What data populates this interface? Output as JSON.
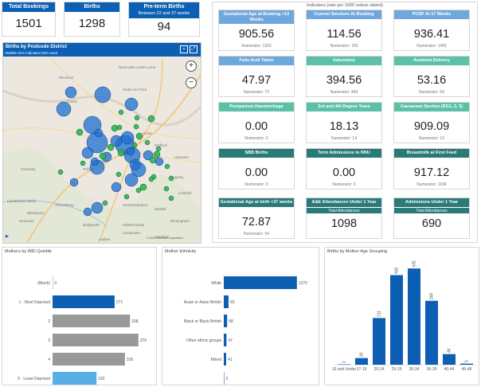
{
  "kpis": [
    {
      "label": "Total Bookings",
      "value": "1501"
    },
    {
      "label": "Births",
      "value": "1298"
    },
    {
      "label": "Pre-term Births",
      "sublabel": "Between 22 and 37 weeks",
      "value": "94"
    }
  ],
  "map": {
    "title": "Births by Postcode District",
    "subtitle": "Bubble Size indicates birth count",
    "zoom_in": "+",
    "zoom_out": "−",
    "place_labels": [
      "Winsford",
      "Crewe",
      "Stoke-on-Trent",
      "Newcastle-under-Lyme",
      "Stafford",
      "Rugeley",
      "Lichfield",
      "Telford",
      "Wellington",
      "Walsall",
      "Wolverhampton",
      "Newtown",
      "Shrewsbury",
      "Oswestry",
      "Welshpool",
      "Ludlow",
      "Leominster",
      "Hereford",
      "Llandrindod Wells",
      "Bridgnorth",
      "Kidderminster",
      "Birmingham",
      "Stone",
      "Uttoxeter"
    ],
    "attribution": "© 2024 Microsoft Corporation"
  },
  "indicators": {
    "title": "Indicators (rate per 1000 unless stated)",
    "items": [
      {
        "label": "Gestational Age at Booking <13 Weeks",
        "value": "905.56",
        "note": "Numerator: 1362",
        "color": "#6fa8dc"
      },
      {
        "label": "Current Smokers At Booking",
        "value": "114.56",
        "note": "Numerator: 166",
        "color": "#6fa8dc"
      },
      {
        "label": "PCSP At 17 Weeks",
        "value": "936.41",
        "note": "Numerator: 1405",
        "color": "#6fa8dc"
      },
      {
        "label": "Folic Acid Taken",
        "value": "47.97",
        "note": "Numerator: 72",
        "color": "#6fa8dc"
      },
      {
        "label": "Inductions",
        "value": "394.56",
        "note": "Numerator: 484",
        "color": "#5cc0a7"
      },
      {
        "label": "Assisted Delivery",
        "value": "53.16",
        "note": "Numerator: 69",
        "color": "#5cc0a7"
      },
      {
        "label": "Postpartum Haemorrhage",
        "value": "0.00",
        "note": "Numerator: 0",
        "color": "#5cc0a7"
      },
      {
        "label": "3rd and 4th Degree Tears",
        "value": "18.13",
        "note": "Numerator: 14",
        "color": "#5cc0a7"
      },
      {
        "label": "Caesarean Section (RG1, 2, 5)",
        "value": "909.09",
        "note": "Numerator: 10",
        "color": "#5cc0a7"
      },
      {
        "label": "SBB Births",
        "value": "0.00",
        "note": "Numerator: 0",
        "color": "#2a7a78"
      },
      {
        "label": "Term Admissions to NNU",
        "value": "0.00",
        "note": "Numerator: 0",
        "color": "#2a7a78"
      },
      {
        "label": "Breastmilk at First Feed",
        "value": "917.12",
        "note": "Numerator: 1184",
        "color": "#2a7a78"
      },
      {
        "label": "Gestational Age at birth <37 weeks",
        "value": "72.87",
        "note": "Numerator: 94",
        "color": "#2a7a78"
      },
      {
        "label": "A&E Attendances Under 1 Year",
        "sublabel": "Total Attendances",
        "value": "1098",
        "note": "",
        "color": "#2a7a78"
      },
      {
        "label": "Admissions Under 1 Year",
        "sublabel": "Total Attendances",
        "value": "690",
        "note": "",
        "color": "#2a7a78"
      }
    ]
  },
  "chart_data": [
    {
      "type": "bar",
      "orientation": "horizontal",
      "title": "Mothers by IMD Quintile",
      "categories": [
        "(Blank)",
        "1 - Most Deprived",
        "2",
        "3",
        "4",
        "5 - Least Deprived"
      ],
      "values": [
        0,
        271,
        338,
        375,
        316,
        192
      ],
      "colors": [
        "#999999",
        "#0d5fb4",
        "#999999",
        "#999999",
        "#999999",
        "#5aaee8"
      ],
      "xlim": [
        0,
        400
      ]
    },
    {
      "type": "bar",
      "orientation": "horizontal",
      "title": "Mother Ethnicity",
      "categories": [
        "White",
        "Asian or Asian British",
        "Black or Black British",
        "Other ethnic groups",
        "Mixed",
        ""
      ],
      "values": [
        1270,
        83,
        58,
        47,
        41,
        2
      ],
      "color": "#0d5fb4",
      "xlim": [
        0,
        1300
      ]
    },
    {
      "type": "bar",
      "title": "Births by Mother Age Grouping",
      "categories": [
        "16 and Under",
        "17-19",
        "20-24",
        "25-29",
        "30-34",
        "35-39",
        "40-44",
        "45-49"
      ],
      "values": [
        1,
        30,
        211,
        405,
        435,
        289,
        48,
        5
      ],
      "color": "#0d5fb4",
      "ylim": [
        0,
        450
      ]
    }
  ]
}
